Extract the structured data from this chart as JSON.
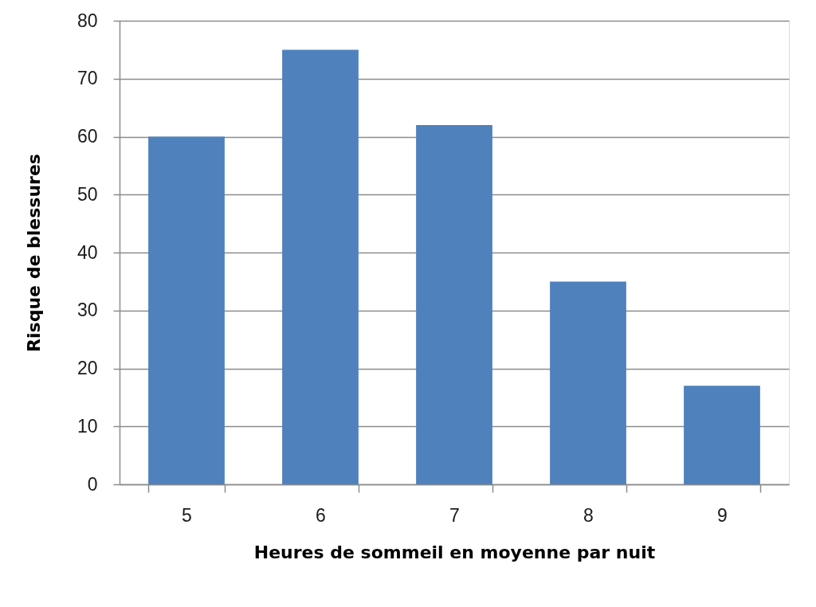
{
  "chart_data": {
    "type": "bar",
    "xlabel": "Heures de sommeil en moyenne par nuit",
    "ylabel": "Risque de blessures",
    "categories": [
      "5",
      "6",
      "7",
      "8",
      "9"
    ],
    "values": [
      60,
      75,
      62,
      35,
      17
    ],
    "color": "#4f81bd",
    "ylim": [
      0,
      80
    ],
    "yticks": [
      0,
      10,
      20,
      30,
      40,
      50,
      60,
      70,
      80
    ],
    "grid": "y"
  }
}
